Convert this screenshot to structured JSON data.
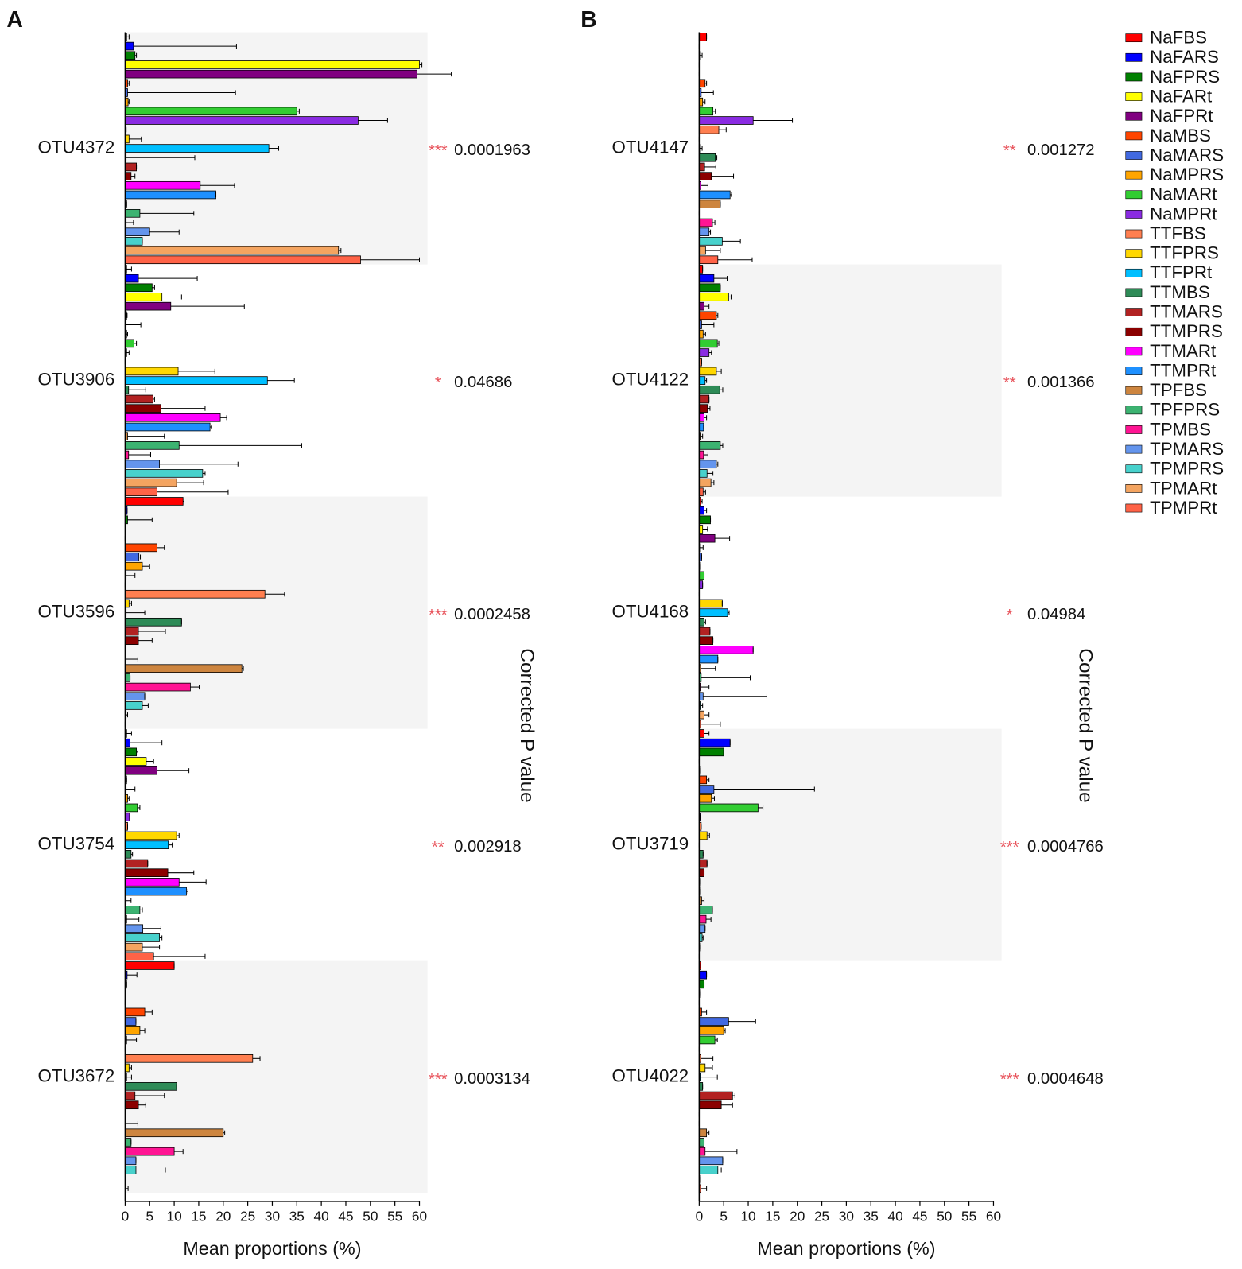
{
  "chart_data": [
    {
      "type": "bar",
      "orientation": "horizontal",
      "panel": "A",
      "categories": [
        "OTU4372",
        "OTU3906",
        "OTU3596",
        "OTU3754",
        "OTU3672"
      ],
      "shading": [
        true,
        false,
        true,
        false,
        true
      ],
      "stars": [
        "***",
        "*",
        "***",
        "**",
        "***"
      ],
      "p_values": [
        0.0001963,
        0.04686,
        0.0002458,
        0.002918,
        0.0003134
      ],
      "xlabel": "Mean proportions (%)",
      "y2label": "Corrected P value",
      "xlim": [
        0,
        60
      ],
      "xticks": [
        0,
        5,
        10,
        15,
        20,
        25,
        30,
        35,
        40,
        45,
        50,
        55,
        60
      ],
      "series": [
        {
          "name": "NaFBS",
          "color": "#ff0000",
          "values": [
            0.3,
            0.3,
            11.8,
            0.3,
            10
          ],
          "errors": [
            0.5,
            1,
            0.2,
            1,
            0
          ]
        },
        {
          "name": "NaFARS",
          "color": "#0000ff",
          "values": [
            1.7,
            2.7,
            0.4,
            1,
            0.4
          ],
          "errors": [
            21,
            12,
            0,
            6.5,
            2
          ]
        },
        {
          "name": "NaFPRS",
          "color": "#008000",
          "values": [
            2,
            5.5,
            0.5,
            2.3,
            0.3
          ],
          "errors": [
            0.3,
            0.5,
            5,
            0.3,
            0
          ]
        },
        {
          "name": "NaFARt",
          "color": "#ffff00",
          "values": [
            60,
            7.5,
            0.1,
            4.3,
            0.1
          ],
          "errors": [
            0.5,
            4,
            0,
            1.5,
            0
          ]
        },
        {
          "name": "NaFPRt",
          "color": "#800080",
          "values": [
            59.5,
            9.3,
            0,
            6.5,
            0
          ],
          "errors": [
            7,
            15,
            0,
            6.5,
            0
          ]
        },
        {
          "name": "NaMBS",
          "color": "#ff4500",
          "values": [
            0.5,
            0.3,
            6.5,
            0.3,
            4
          ],
          "errors": [
            0.3,
            0.1,
            1.5,
            0,
            1.5
          ]
        },
        {
          "name": "NaMARS",
          "color": "#4169e1",
          "values": [
            0.5,
            0.2,
            2.8,
            0.2,
            2.2
          ],
          "errors": [
            22,
            3,
            0.3,
            1.8,
            0
          ]
        },
        {
          "name": "NaMPRS",
          "color": "#ffa500",
          "values": [
            0.6,
            0.3,
            3.5,
            0.5,
            3
          ],
          "errors": [
            0.2,
            0.2,
            1.5,
            0.3,
            1
          ]
        },
        {
          "name": "NaMARt",
          "color": "#32cd32",
          "values": [
            35,
            1.8,
            0.2,
            2.5,
            0.3
          ],
          "errors": [
            0.5,
            0.5,
            1.8,
            0.5,
            2
          ]
        },
        {
          "name": "NaMPRt",
          "color": "#8a2be2",
          "values": [
            47.5,
            0.3,
            0,
            0.9,
            0
          ],
          "errors": [
            6,
            0.5,
            0,
            0,
            0
          ]
        },
        {
          "name": "TTFBS",
          "color": "#ff7f50",
          "values": [
            0.2,
            0,
            28.5,
            0.5,
            26
          ],
          "errors": [
            0,
            0,
            4,
            0,
            1.5
          ]
        },
        {
          "name": "TTFPRS",
          "color": "#ffd700",
          "values": [
            0.8,
            10.8,
            0.8,
            10.5,
            0.8
          ],
          "errors": [
            2.5,
            7.5,
            0.5,
            0.5,
            0.5
          ]
        },
        {
          "name": "TTFPRt",
          "color": "#00bfff",
          "values": [
            29.3,
            29,
            0.2,
            8.8,
            0.3
          ],
          "errors": [
            2,
            5.5,
            3.8,
            0.8,
            1
          ]
        },
        {
          "name": "TTMBS",
          "color": "#2e8b57",
          "values": [
            0.2,
            0.7,
            11.5,
            1.2,
            10.5
          ],
          "errors": [
            14,
            3.5,
            0,
            0.3,
            0
          ]
        },
        {
          "name": "TTMARS",
          "color": "#b22222",
          "values": [
            2.3,
            5.7,
            2.7,
            4.6,
            2
          ],
          "errors": [
            0,
            0.3,
            5.5,
            0,
            6
          ]
        },
        {
          "name": "TTMPRS",
          "color": "#8b0000",
          "values": [
            1.2,
            7.3,
            2.7,
            8.7,
            2.7
          ],
          "errors": [
            0.8,
            9,
            2.8,
            5.3,
            1.5
          ]
        },
        {
          "name": "TTMARt",
          "color": "#ff00ff",
          "values": [
            15.3,
            19.4,
            0.1,
            11,
            0.1
          ],
          "errors": [
            7,
            1.3,
            0,
            5.5,
            0
          ]
        },
        {
          "name": "TTMPRt",
          "color": "#1e90ff",
          "values": [
            18.5,
            17.3,
            0.1,
            12.5,
            0.1
          ],
          "errors": [
            0,
            0.3,
            2.5,
            0.3,
            2.5
          ]
        },
        {
          "name": "TPFBS",
          "color": "#cd853f",
          "values": [
            0.3,
            0.5,
            23.8,
            0.2,
            20
          ],
          "errors": [
            0,
            7.5,
            0.3,
            1,
            0.3
          ]
        },
        {
          "name": "TPFPRS",
          "color": "#3cb371",
          "values": [
            3,
            11,
            1,
            3,
            1.2
          ],
          "errors": [
            11,
            25,
            0,
            0.5,
            0
          ]
        },
        {
          "name": "TPMBS",
          "color": "#ff1493",
          "values": [
            0.2,
            0.7,
            13.3,
            0.3,
            10
          ],
          "errors": [
            1.5,
            4.5,
            1.8,
            2.5,
            1.8
          ]
        },
        {
          "name": "TPMARS",
          "color": "#6495ed",
          "values": [
            5,
            7,
            4,
            3.6,
            2.2
          ],
          "errors": [
            6,
            16,
            0,
            3.7,
            0
          ]
        },
        {
          "name": "TPMPRS",
          "color": "#48d1cc",
          "values": [
            3.5,
            15.8,
            3.5,
            7,
            2.2
          ],
          "errors": [
            0,
            0.5,
            1.2,
            0.5,
            6
          ]
        },
        {
          "name": "TPMARt",
          "color": "#f4a460",
          "values": [
            43.5,
            10.5,
            0.2,
            3.5,
            0.1
          ],
          "errors": [
            0.5,
            5.5,
            0.3,
            3.5,
            0
          ]
        },
        {
          "name": "TPMPRt",
          "color": "#ff6347",
          "values": [
            48,
            6.5,
            0,
            5.8,
            0.1
          ],
          "errors": [
            12,
            14.5,
            0,
            10.5,
            0.5
          ]
        }
      ]
    },
    {
      "type": "bar",
      "orientation": "horizontal",
      "panel": "B",
      "categories": [
        "OTU4147",
        "OTU4122",
        "OTU4168",
        "OTU3719",
        "OTU4022"
      ],
      "shading": [
        false,
        true,
        false,
        true,
        false
      ],
      "stars": [
        "**",
        "**",
        "*",
        "***",
        "***"
      ],
      "p_values": [
        0.001272,
        0.001366,
        0.04984,
        0.0004766,
        0.0004648
      ],
      "xlabel": "Mean proportions (%)",
      "y2label": "Corrected P value",
      "xlim": [
        0,
        60
      ],
      "xticks": [
        0,
        5,
        10,
        15,
        20,
        25,
        30,
        35,
        40,
        45,
        50,
        55,
        60
      ],
      "legend": "right",
      "series": [
        {
          "name": "NaFBS",
          "color": "#ff0000",
          "values": [
            1.5,
            0.7,
            0.3,
            1,
            0.3
          ],
          "errors": [
            0,
            0,
            0.3,
            1,
            0
          ]
        },
        {
          "name": "NaFARS",
          "color": "#0000ff",
          "values": [
            0,
            3,
            1,
            6.3,
            1.5
          ],
          "errors": [
            0,
            2.7,
            0.5,
            0,
            0
          ]
        },
        {
          "name": "NaFPRS",
          "color": "#008000",
          "values": [
            0.1,
            4.3,
            2.3,
            5,
            1
          ],
          "errors": [
            0.5,
            0,
            0,
            0,
            0
          ]
        },
        {
          "name": "NaFARt",
          "color": "#ffff00",
          "values": [
            0,
            6,
            0.7,
            0,
            0.1
          ],
          "errors": [
            0,
            0.5,
            1,
            0,
            0
          ]
        },
        {
          "name": "NaFPRt",
          "color": "#800080",
          "values": [
            0,
            1,
            3.2,
            0.1,
            0
          ],
          "errors": [
            0,
            1,
            3,
            0,
            0
          ]
        },
        {
          "name": "NaMBS",
          "color": "#ff4500",
          "values": [
            1.2,
            3.5,
            0.1,
            1.5,
            0.5
          ],
          "errors": [
            0.3,
            0.3,
            0.7,
            0.5,
            1
          ]
        },
        {
          "name": "NaMARS",
          "color": "#4169e1",
          "values": [
            0.4,
            0.5,
            0.5,
            3,
            6
          ],
          "errors": [
            2.5,
            2.5,
            0,
            20.5,
            5.5
          ]
        },
        {
          "name": "NaMPRS",
          "color": "#ffa500",
          "values": [
            0.7,
            0.8,
            0.1,
            2.5,
            5
          ],
          "errors": [
            0.5,
            0.5,
            0,
            0.6,
            0.3
          ]
        },
        {
          "name": "NaMARt",
          "color": "#32cd32",
          "values": [
            2.8,
            3.7,
            1,
            12,
            3.2
          ],
          "errors": [
            0.5,
            0.3,
            0,
            1,
            0.5
          ]
        },
        {
          "name": "NaMPRt",
          "color": "#8a2be2",
          "values": [
            11,
            2,
            0.7,
            0.2,
            0
          ],
          "errors": [
            8,
            0.5,
            0,
            0,
            0
          ]
        },
        {
          "name": "TTFBS",
          "color": "#ff7f50",
          "values": [
            4,
            0.5,
            0,
            0.4,
            0.3
          ],
          "errors": [
            1.5,
            0,
            0,
            0,
            2.5
          ]
        },
        {
          "name": "TTFPRS",
          "color": "#ffd700",
          "values": [
            0,
            3.5,
            4.7,
            1.6,
            1.2
          ],
          "errors": [
            0,
            1,
            0,
            0.5,
            1.5
          ]
        },
        {
          "name": "TTFPRt",
          "color": "#00bfff",
          "values": [
            0.1,
            1.2,
            5.8,
            0,
            0.2
          ],
          "errors": [
            0.5,
            0.3,
            0.3,
            0,
            3.5
          ]
        },
        {
          "name": "TTMBS",
          "color": "#2e8b57",
          "values": [
            3.3,
            4.2,
            1,
            0.8,
            0.7
          ],
          "errors": [
            0.3,
            0.6,
            0.3,
            0,
            0
          ]
        },
        {
          "name": "TTMARS",
          "color": "#b22222",
          "values": [
            1.1,
            2,
            2.2,
            1.6,
            6.8
          ],
          "errors": [
            2.3,
            0,
            0,
            0,
            0.5
          ]
        },
        {
          "name": "TTMPRS",
          "color": "#8b0000",
          "values": [
            2.5,
            1.7,
            2.8,
            1,
            4.5
          ],
          "errors": [
            4.5,
            0.5,
            0,
            0,
            2.3
          ]
        },
        {
          "name": "TTMARt",
          "color": "#ff00ff",
          "values": [
            0.3,
            1,
            11,
            0.1,
            0
          ],
          "errors": [
            1.5,
            0.5,
            0,
            0,
            0
          ]
        },
        {
          "name": "TTMPRt",
          "color": "#1e90ff",
          "values": [
            6.3,
            0.9,
            3.8,
            0.1,
            0
          ],
          "errors": [
            0.3,
            0,
            0,
            0,
            0
          ]
        },
        {
          "name": "TPFBS",
          "color": "#cd853f",
          "values": [
            4.3,
            0.2,
            0.3,
            0.5,
            1.5
          ],
          "errors": [
            0,
            0.5,
            3,
            0.5,
            0.5
          ]
        },
        {
          "name": "TPFPRS",
          "color": "#3cb371",
          "values": [
            0,
            4.3,
            0.4,
            2.7,
            1
          ],
          "errors": [
            0,
            0.5,
            10,
            0,
            0
          ]
        },
        {
          "name": "TPMBS",
          "color": "#ff1493",
          "values": [
            2.7,
            0.9,
            0.2,
            1.4,
            1.2
          ],
          "errors": [
            0.5,
            0.9,
            1.8,
            1,
            6.5
          ]
        },
        {
          "name": "TPMARS",
          "color": "#6495ed",
          "values": [
            2,
            3.5,
            0.8,
            1.2,
            4.8
          ],
          "errors": [
            0.3,
            0.3,
            13,
            0,
            0
          ]
        },
        {
          "name": "TPMPRS",
          "color": "#48d1cc",
          "values": [
            4.7,
            1.6,
            0.2,
            0.6,
            3.8
          ],
          "errors": [
            3.7,
            1.2,
            0.5,
            0.2,
            0.7
          ]
        },
        {
          "name": "TPMARt",
          "color": "#f4a460",
          "values": [
            1.3,
            2.4,
            1,
            0.1,
            0.1
          ],
          "errors": [
            3,
            0.6,
            1,
            0,
            0
          ]
        },
        {
          "name": "TPMPRt",
          "color": "#ff6347",
          "values": [
            3.8,
            0.8,
            0.3,
            0,
            0.3
          ],
          "errors": [
            7,
            0.5,
            4,
            0,
            1.2
          ]
        }
      ]
    }
  ]
}
